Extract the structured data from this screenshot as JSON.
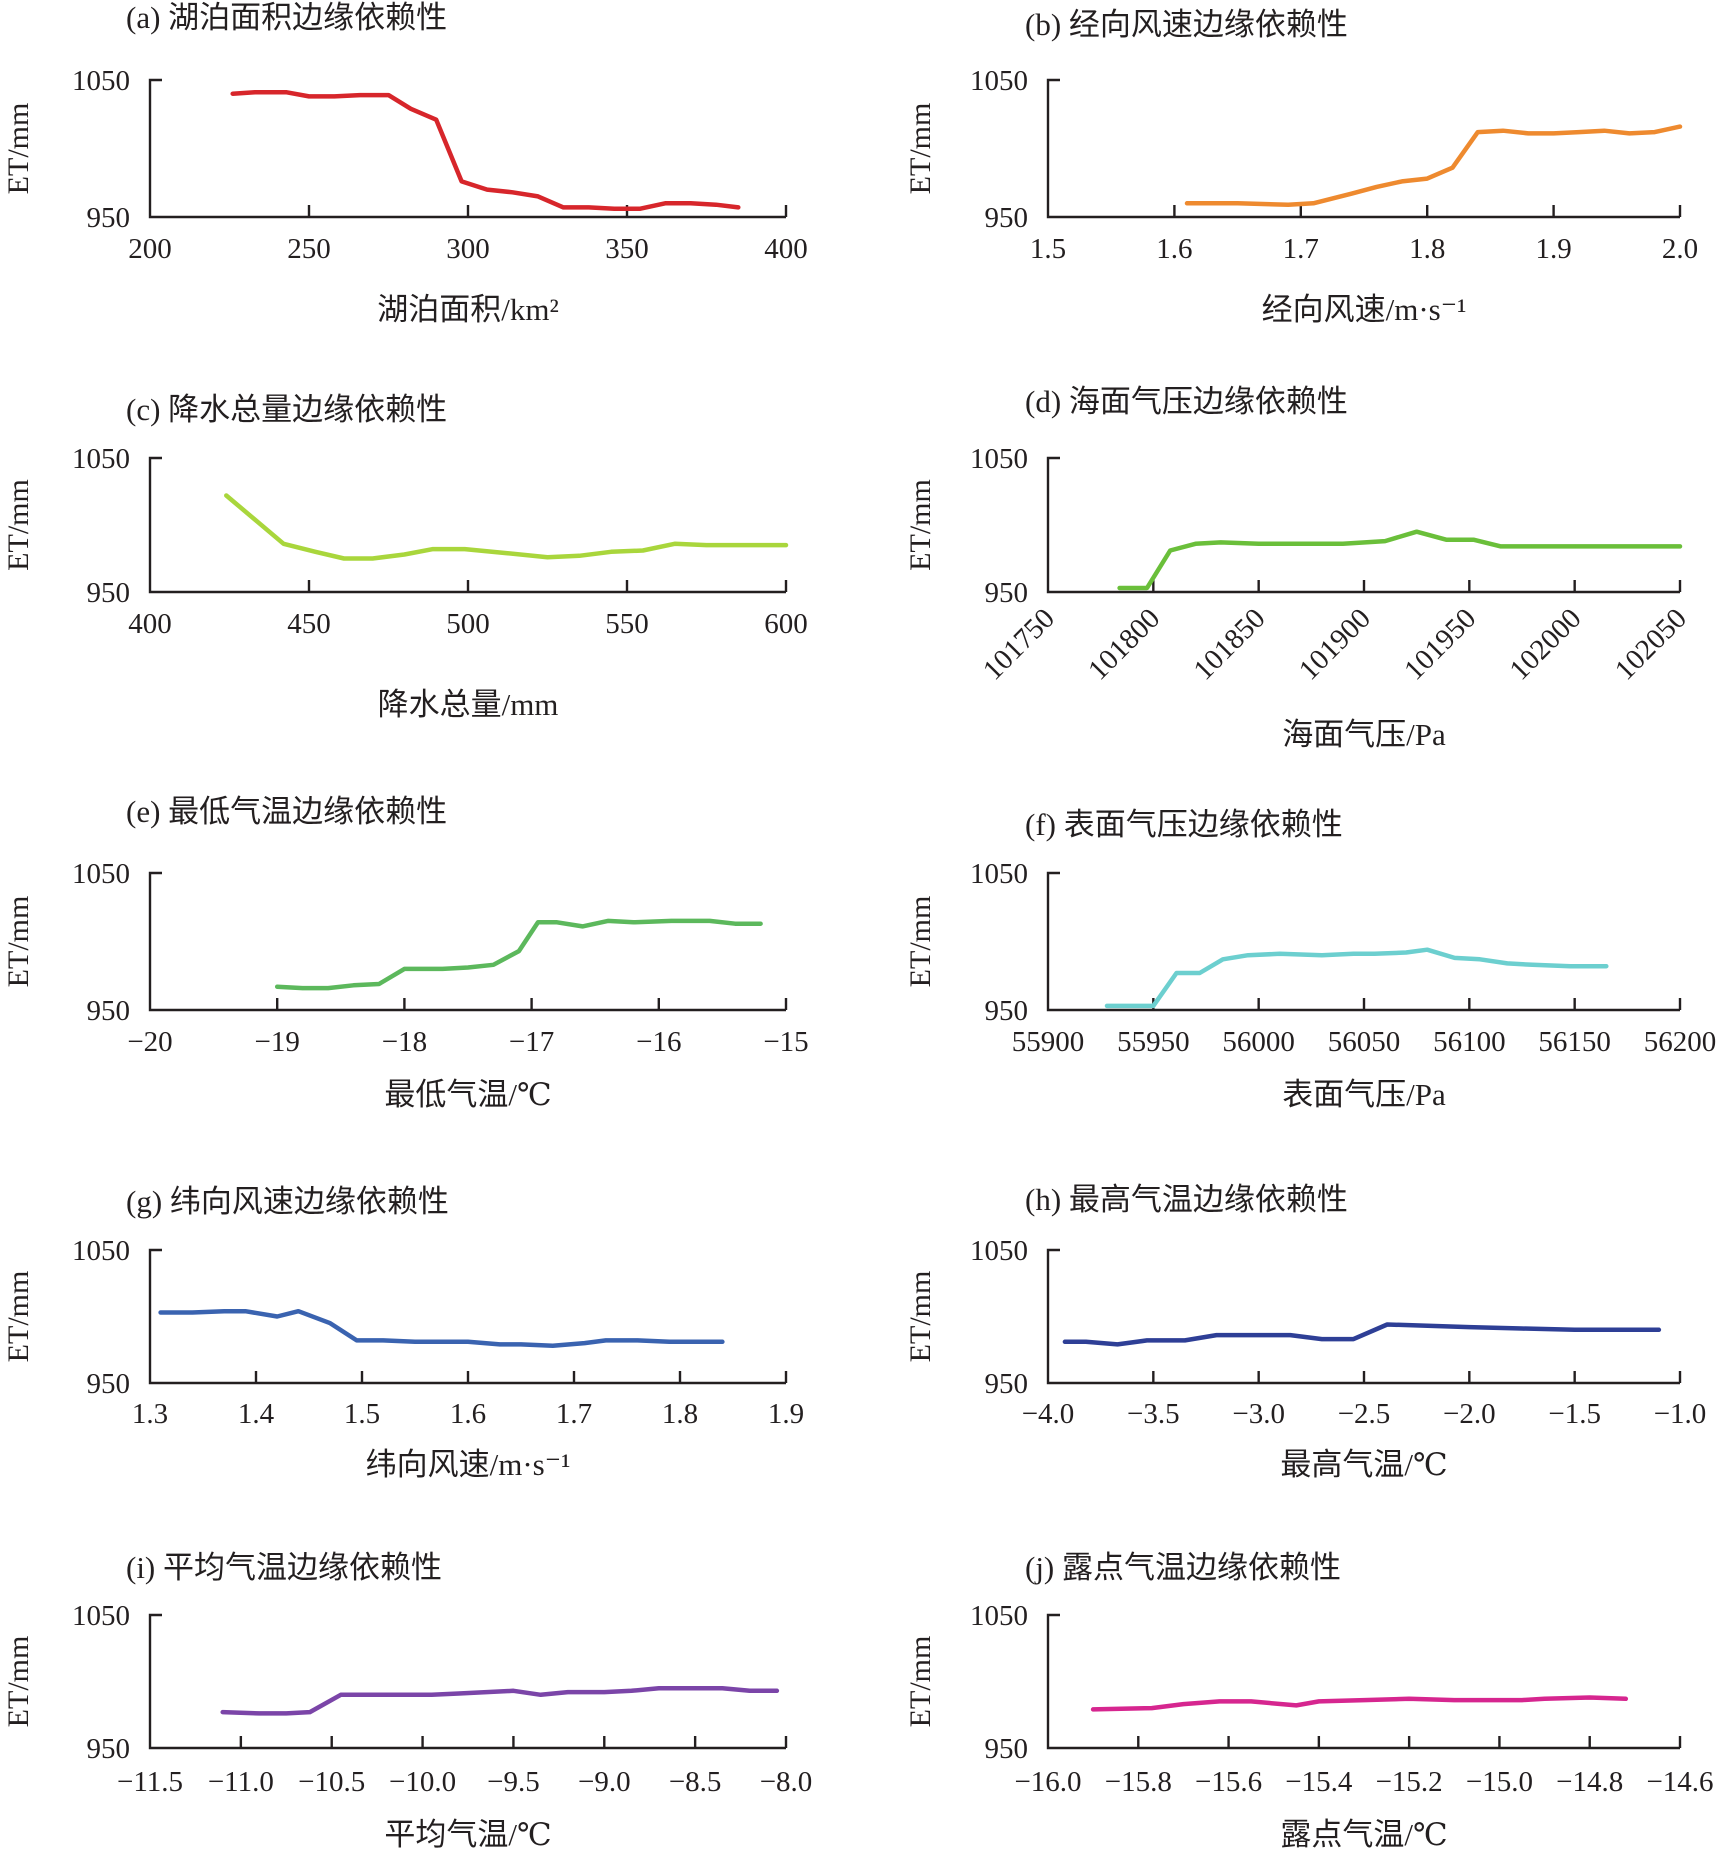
{
  "figure": {
    "y_axis_label": "ET/mm"
  },
  "chart_data": [
    {
      "id": "a",
      "type": "line",
      "title": "(a) 湖泊面积边缘依赖性",
      "xlabel": "湖泊面积/km²",
      "ylabel": "ET/mm",
      "xlim": [
        200,
        400
      ],
      "xticks": [
        "200",
        "250",
        "300",
        "350",
        "400"
      ],
      "xtick_values": [
        200,
        250,
        300,
        350,
        400
      ],
      "ylim": [
        950,
        1050
      ],
      "yticks": [
        "950",
        "1050"
      ],
      "color": "#d7262b",
      "grid": false,
      "legend": "none",
      "x": [
        226,
        233,
        243,
        250,
        258,
        266,
        275,
        282,
        290,
        298,
        306,
        314,
        322,
        330,
        338,
        346,
        354,
        362,
        370,
        378,
        385
      ],
      "y": [
        1040,
        1041,
        1041,
        1038,
        1038,
        1039,
        1039,
        1029,
        1021,
        976,
        970,
        968,
        965,
        957,
        957,
        956,
        956,
        960,
        960,
        959,
        957
      ]
    },
    {
      "id": "b",
      "type": "line",
      "title": "(b) 经向风速边缘依赖性",
      "xlabel": "经向风速/m·s⁻¹",
      "ylabel": "ET/mm",
      "xlim": [
        1.5,
        2.0
      ],
      "xticks": [
        "1.5",
        "1.6",
        "1.7",
        "1.8",
        "1.9",
        "2.0"
      ],
      "xtick_values": [
        1.5,
        1.6,
        1.7,
        1.8,
        1.9,
        2.0
      ],
      "ylim": [
        950,
        1050
      ],
      "yticks": [
        "950",
        "1050"
      ],
      "color": "#ee8a2f",
      "grid": false,
      "legend": "none",
      "x": [
        1.61,
        1.65,
        1.69,
        1.71,
        1.74,
        1.76,
        1.78,
        1.8,
        1.82,
        1.84,
        1.86,
        1.88,
        1.9,
        1.92,
        1.94,
        1.96,
        1.98,
        2.0
      ],
      "y": [
        960,
        960,
        959,
        960,
        967,
        972,
        976,
        978,
        986,
        1012,
        1013,
        1011,
        1011,
        1012,
        1013,
        1011,
        1012,
        1016
      ]
    },
    {
      "id": "c",
      "type": "line",
      "title": "(c) 降水总量边缘依赖性",
      "xlabel": "降水总量/mm",
      "ylabel": "ET/mm",
      "xlim": [
        400,
        600
      ],
      "xticks": [
        "400",
        "450",
        "500",
        "550",
        "600"
      ],
      "xtick_values": [
        400,
        450,
        500,
        550,
        600
      ],
      "ylim": [
        950,
        1050
      ],
      "yticks": [
        "950",
        "1050"
      ],
      "color": "#a9d63c",
      "grid": false,
      "legend": "none",
      "x": [
        424,
        442,
        452,
        461,
        470,
        480,
        489,
        499,
        512,
        525,
        535,
        545,
        555,
        565,
        575,
        590,
        600
      ],
      "y": [
        1022,
        986,
        980,
        975,
        975,
        978,
        982,
        982,
        979,
        976,
        977,
        980,
        981,
        986,
        985,
        985,
        985
      ]
    },
    {
      "id": "d",
      "type": "line",
      "title": "(d) 海面气压边缘依赖性",
      "xlabel": "海面气压/Pa",
      "ylabel": "ET/mm",
      "xlim": [
        101750,
        102050
      ],
      "xticks": [
        "101750",
        "101800",
        "101850",
        "101900",
        "101950",
        "102000",
        "102050"
      ],
      "xtick_values": [
        101750,
        101800,
        101850,
        101900,
        101950,
        102000,
        102050
      ],
      "xtick_rotation": -45,
      "ylim": [
        950,
        1050
      ],
      "yticks": [
        "950",
        "1050"
      ],
      "color": "#6abf3a",
      "grid": false,
      "legend": "none",
      "x": [
        101784,
        101797,
        101808,
        101820,
        101832,
        101850,
        101870,
        101890,
        101910,
        101925,
        101939,
        101952,
        101965,
        101980,
        102000,
        102030,
        102050
      ],
      "y": [
        953,
        953,
        981,
        986,
        987,
        986,
        986,
        986,
        988,
        995,
        989,
        989,
        984,
        984,
        984,
        984,
        984
      ]
    },
    {
      "id": "e",
      "type": "line",
      "title": "(e) 最低气温边缘依赖性",
      "xlabel": "最低气温/℃",
      "ylabel": "ET/mm",
      "xlim": [
        -20,
        -15
      ],
      "xticks": [
        "−20",
        "−19",
        "−18",
        "−17",
        "−16",
        "−15"
      ],
      "xtick_values": [
        -20,
        -19,
        -18,
        -17,
        -16,
        -15
      ],
      "ylim": [
        950,
        1050
      ],
      "yticks": [
        "950",
        "1050"
      ],
      "color": "#5cb85c",
      "grid": false,
      "legend": "none",
      "x": [
        -19.0,
        -18.8,
        -18.6,
        -18.4,
        -18.2,
        -18.0,
        -17.7,
        -17.5,
        -17.3,
        -17.1,
        -16.95,
        -16.8,
        -16.6,
        -16.4,
        -16.2,
        -15.9,
        -15.6,
        -15.4,
        -15.2
      ],
      "y": [
        967,
        966,
        966,
        968,
        969,
        980,
        980,
        981,
        983,
        993,
        1014,
        1014,
        1011,
        1015,
        1014,
        1015,
        1015,
        1013,
        1013
      ]
    },
    {
      "id": "f",
      "type": "line",
      "title": "(f) 表面气压边缘依赖性",
      "xlabel": "表面气压/Pa",
      "ylabel": "ET/mm",
      "xlim": [
        55900,
        56200
      ],
      "xticks": [
        "55900",
        "55950",
        "56000",
        "56050",
        "56100",
        "56150",
        "56200"
      ],
      "xtick_values": [
        55900,
        55950,
        56000,
        56050,
        56100,
        56150,
        56200
      ],
      "ylim": [
        950,
        1050
      ],
      "yticks": [
        "950",
        "1050"
      ],
      "color": "#6ccfcf",
      "grid": false,
      "legend": "none",
      "x": [
        55928,
        55950,
        55961,
        55972,
        55983,
        55995,
        56010,
        56030,
        56045,
        56055,
        56070,
        56080,
        56093,
        56105,
        56118,
        56130,
        56148,
        56165
      ],
      "y": [
        953,
        953,
        977,
        977,
        987,
        990,
        991,
        990,
        991,
        991,
        992,
        994,
        988,
        987,
        984,
        983,
        982,
        982
      ]
    },
    {
      "id": "g",
      "type": "line",
      "title": "(g) 纬向风速边缘依赖性",
      "xlabel": "纬向风速/m·s⁻¹",
      "ylabel": "ET/mm",
      "xlim": [
        1.3,
        1.9
      ],
      "xticks": [
        "1.3",
        "1.4",
        "1.5",
        "1.6",
        "1.7",
        "1.8",
        "1.9"
      ],
      "xtick_values": [
        1.3,
        1.4,
        1.5,
        1.6,
        1.7,
        1.8,
        1.9
      ],
      "ylim": [
        950,
        1050
      ],
      "yticks": [
        "950",
        "1050"
      ],
      "color": "#3a63b0",
      "grid": false,
      "legend": "none",
      "x": [
        1.31,
        1.34,
        1.37,
        1.39,
        1.42,
        1.44,
        1.47,
        1.495,
        1.52,
        1.55,
        1.6,
        1.63,
        1.65,
        1.68,
        1.71,
        1.73,
        1.76,
        1.79,
        1.84
      ],
      "y": [
        1003,
        1003,
        1004,
        1004,
        1000,
        1004,
        995,
        982,
        982,
        981,
        981,
        979,
        979,
        978,
        980,
        982,
        982,
        981,
        981
      ]
    },
    {
      "id": "h",
      "type": "line",
      "title": "(h) 最高气温边缘依赖性",
      "xlabel": "最高气温/℃",
      "ylabel": "ET/mm",
      "xlim": [
        -4.0,
        -1.0
      ],
      "xticks": [
        "−4.0",
        "−3.5",
        "−3.0",
        "−2.5",
        "−2.0",
        "−1.5",
        "−1.0"
      ],
      "xtick_values": [
        -4.0,
        -3.5,
        -3.0,
        -2.5,
        -2.0,
        -1.5,
        -1.0
      ],
      "ylim": [
        950,
        1050
      ],
      "yticks": [
        "950",
        "1050"
      ],
      "color": "#2e3f96",
      "grid": false,
      "legend": "none",
      "x": [
        -3.92,
        -3.82,
        -3.67,
        -3.53,
        -3.35,
        -3.2,
        -3.0,
        -2.85,
        -2.7,
        -2.55,
        -2.39,
        -2.0,
        -1.75,
        -1.5,
        -1.1
      ],
      "y": [
        981,
        981,
        979,
        982,
        982,
        986,
        986,
        986,
        983,
        983,
        994,
        992,
        991,
        990,
        990
      ]
    },
    {
      "id": "i",
      "type": "line",
      "title": "(i) 平均气温边缘依赖性",
      "xlabel": "平均气温/℃",
      "ylabel": "ET/mm",
      "xlim": [
        -11.5,
        -8.0
      ],
      "xticks": [
        "−11.5",
        "−11.0",
        "−10.5",
        "−10.0",
        "−9.5",
        "−9.0",
        "−8.5",
        "−8.0"
      ],
      "xtick_values": [
        -11.5,
        -11.0,
        -10.5,
        -10.0,
        -9.5,
        -9.0,
        -8.5,
        -8.0
      ],
      "ylim": [
        950,
        1050
      ],
      "yticks": [
        "950",
        "1050"
      ],
      "color": "#7b45a8",
      "grid": false,
      "legend": "none",
      "x": [
        -11.1,
        -10.9,
        -10.75,
        -10.62,
        -10.45,
        -10.2,
        -9.95,
        -9.8,
        -9.5,
        -9.35,
        -9.2,
        -9.0,
        -8.85,
        -8.7,
        -8.5,
        -8.35,
        -8.2,
        -8.05
      ],
      "y": [
        977,
        976,
        976,
        977,
        990,
        990,
        990,
        991,
        993,
        990,
        992,
        992,
        993,
        995,
        995,
        995,
        993,
        993
      ]
    },
    {
      "id": "j",
      "type": "line",
      "title": "(j) 露点气温边缘依赖性",
      "xlabel": "露点气温/℃",
      "ylabel": "ET/mm",
      "xlim": [
        -16.0,
        -14.6
      ],
      "xticks": [
        "−16.0",
        "−15.8",
        "−15.6",
        "−15.4",
        "−15.2",
        "−15.0",
        "−14.8",
        "−14.6"
      ],
      "xtick_values": [
        -16.0,
        -15.8,
        -15.6,
        -15.4,
        -15.2,
        -15.0,
        -14.8,
        -14.6
      ],
      "ylim": [
        950,
        1050
      ],
      "yticks": [
        "950",
        "1050"
      ],
      "color": "#d6268f",
      "grid": false,
      "legend": "none",
      "x": [
        -15.9,
        -15.77,
        -15.7,
        -15.62,
        -15.55,
        -15.45,
        -15.4,
        -15.3,
        -15.2,
        -15.1,
        -14.95,
        -14.9,
        -14.8,
        -14.72
      ],
      "y": [
        979,
        980,
        983,
        985,
        985,
        982,
        985,
        986,
        987,
        986,
        986,
        987,
        988,
        987
      ]
    }
  ]
}
